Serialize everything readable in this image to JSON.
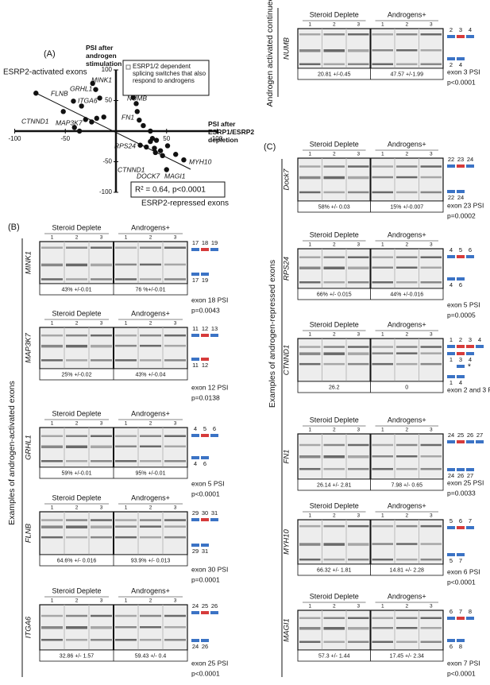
{
  "panel_labels": [
    "(A)",
    "(B)",
    "(C)"
  ],
  "chart_data": {
    "type": "scatter",
    "x_label": "PSI after ESRP1/ESRP2 depletion",
    "y_label": "PSI after androgen stimulation",
    "legend_text": "ESRP1/2 dependent splicing switches that also respond to androgens",
    "annotations": [
      "ESRP2-activated exons",
      "ESRP2-repressed exons",
      "R² = 0.64, p<0.0001"
    ],
    "gene_labels": [
      "MINK1",
      "FLNB",
      "GRHL1",
      "ITGA6",
      "CTNND1",
      "MAP3K7",
      "NUMB",
      "FN1",
      "RPS24",
      "CTNND1",
      "DOCK7",
      "MAGI1",
      "MYH10"
    ],
    "x": [
      -79,
      -52,
      -42,
      -34,
      -23,
      -20,
      -16,
      -30,
      -24,
      -19,
      -12,
      -41,
      -36,
      17,
      20,
      21,
      23,
      27,
      34,
      36,
      24,
      30,
      34,
      40,
      38,
      44,
      46,
      51,
      59,
      67,
      50,
      39
    ],
    "values": [
      62,
      32,
      49,
      41,
      78,
      68,
      54,
      19,
      15,
      21,
      23,
      6,
      0,
      55,
      45,
      32,
      18,
      9,
      0,
      -12,
      -23,
      -26,
      -17,
      -15,
      -28,
      -32,
      -40,
      -24,
      -38,
      -47,
      -63,
      -35
    ],
    "xlim": [
      -100,
      100
    ],
    "ylim": [
      -100,
      100
    ],
    "xticks": [
      -100,
      -50,
      50,
      100
    ],
    "yticks": [
      -100,
      -50,
      50,
      100
    ],
    "color": "#111111"
  },
  "conditions": [
    "Steroid Deplete",
    "Androgens+"
  ],
  "lanes": [
    "1",
    "2",
    "3"
  ],
  "sections": [
    "Examples of androgen-activated exons",
    "Examples of androgen-repressed exons",
    "Androgen activated continued"
  ],
  "gels": [
    {
      "gene": "MINK1",
      "values": [
        "43% +/-0.01",
        "76 %+/-0.01"
      ],
      "exon_top": [
        "17",
        "18",
        "19"
      ],
      "exon_bottom": [
        "17",
        "19"
      ],
      "exon_colors": [
        "#3b73c5",
        "#d63b3b",
        "#3b73c5"
      ],
      "psi_label": "exon 18 PSI",
      "p": "p=0.0043"
    },
    {
      "gene": "MAP3K7",
      "values": [
        "25% +/-0.02",
        "43% +/-0.04"
      ],
      "exon_top": [
        "11",
        "12",
        "13"
      ],
      "exon_bottom": [
        "11",
        "12"
      ],
      "exon_colors": [
        "#3b73c5",
        "#d63b3b",
        "#3b73c5"
      ],
      "psi_label": "exon 12  PSI",
      "p": "p=0.0138"
    },
    {
      "gene": "GRHL1",
      "values": [
        "59% +/-0.01",
        "95% +/-0.01"
      ],
      "exon_top": [
        "4",
        "5",
        "6"
      ],
      "exon_bottom": [
        "4",
        "6"
      ],
      "exon_colors": [
        "#3b73c5",
        "#d63b3b",
        "#3b73c5"
      ],
      "psi_label": "exon 5 PSI",
      "p": "p<0.0001"
    },
    {
      "gene": "FLNB",
      "values": [
        "64.6% +/- 0.016",
        "93.9% +/- 0.013"
      ],
      "exon_top": [
        "29",
        "30",
        "31"
      ],
      "exon_bottom": [
        "29",
        "31"
      ],
      "exon_colors": [
        "#3b73c5",
        "#d63b3b",
        "#3b73c5"
      ],
      "psi_label": "exon 30 PSI",
      "p": "p=0.0001"
    },
    {
      "gene": "ITGA6",
      "values": [
        "32.86 +/- 1.57",
        "59.43 +/- 0.4"
      ],
      "exon_top": [
        "24",
        "25",
        "26"
      ],
      "exon_bottom": [
        "24",
        "26"
      ],
      "exon_colors": [
        "#3b73c5",
        "#d63b3b",
        "#3b73c5"
      ],
      "psi_label": "exon 25 PSI",
      "p": "p<0.0001"
    },
    {
      "gene": "NUMB",
      "values": [
        "20.81 +/-0.45",
        "47.57 +/-1.99"
      ],
      "exon_top": [
        "2",
        "3",
        "4"
      ],
      "exon_bottom": [
        "2",
        "4"
      ],
      "exon_colors": [
        "#3b73c5",
        "#d63b3b",
        "#3b73c5"
      ],
      "psi_label": "exon 3 PSI",
      "p": "p<0.0001"
    },
    {
      "gene": "Dock7",
      "values": [
        "58% +/- 0.03",
        "15% +/-0.007"
      ],
      "exon_top": [
        "22",
        "23",
        "24"
      ],
      "exon_bottom": [
        "22",
        "24"
      ],
      "exon_colors": [
        "#3b73c5",
        "#d63b3b",
        "#3b73c5"
      ],
      "psi_label": "exon 23 PSI",
      "p": "p=0.0002"
    },
    {
      "gene": "RPS24",
      "values": [
        "66% +/- 0.015",
        "44% +/-0.016"
      ],
      "exon_top": [
        "4",
        "5",
        "6"
      ],
      "exon_bottom": [
        "4",
        "6"
      ],
      "exon_colors": [
        "#3b73c5",
        "#d63b3b",
        "#3b73c5"
      ],
      "psi_label": "exon 5 PSI",
      "p": "p=0.0005"
    },
    {
      "gene": "CTNND1",
      "values": [
        "26.2",
        "0"
      ],
      "exon_top": [
        "1",
        "2",
        "3",
        "4"
      ],
      "exon_middle": [
        "1",
        "3",
        "4"
      ],
      "exon_mark": "*",
      "exon_bottom": [
        "1",
        "4"
      ],
      "exon_colors": [
        "#3b73c5",
        "#d63b3b",
        "#d63b3b",
        "#3b73c5"
      ],
      "psi_label": "exon 2 and 3 PSI"
    },
    {
      "gene": "FN1",
      "values": [
        "26.14 +/- 2.81",
        "7.98 +/- 0.65"
      ],
      "exon_top": [
        "24",
        "25",
        "26",
        "27"
      ],
      "exon_bottom": [
        "24",
        "26",
        "27"
      ],
      "exon_colors": [
        "#3b73c5",
        "#d63b3b",
        "#3b73c5",
        "#3b73c5"
      ],
      "psi_label": "exon 25 PSI",
      "p": "p=0.0033"
    },
    {
      "gene": "MYH10",
      "values": [
        "66.32 +/- 1.81",
        "14.81 +/- 2.28"
      ],
      "exon_top": [
        "5",
        "6",
        "7"
      ],
      "exon_bottom": [
        "5",
        "7"
      ],
      "exon_colors": [
        "#3b73c5",
        "#d63b3b",
        "#3b73c5"
      ],
      "psi_label": "exon 6 PSI",
      "p": "p<0.0001"
    },
    {
      "gene": "MAGI1",
      "values": [
        "57.3 +/- 1.44",
        "17.45 +/- 2.34"
      ],
      "exon_top": [
        "6",
        "7",
        "8"
      ],
      "exon_bottom": [
        "6",
        "8"
      ],
      "exon_colors": [
        "#3b73c5",
        "#d63b3b",
        "#3b73c5"
      ],
      "psi_label": "exon 7 PSI",
      "p": "p<0.0001"
    }
  ]
}
